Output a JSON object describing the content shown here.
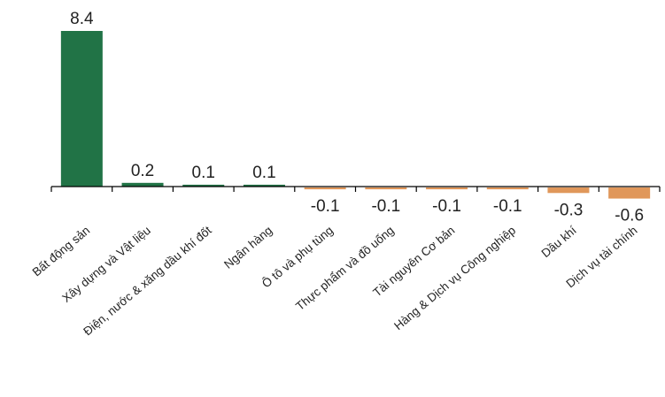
{
  "chart_data": {
    "type": "bar",
    "title": "",
    "xlabel": "",
    "ylabel": "",
    "categories": [
      "Bất động sản",
      "Xây dựng và Vật liệu",
      "Điện, nước & xăng dầu khí đốt",
      "Ngân hàng",
      "Ô tô và phụ tùng",
      "Thực phẩm và đồ uống",
      "Tài nguyên Cơ bản",
      "Hàng & Dịch vụ Công nghiệp",
      "Dầu khí",
      "Dịch vụ tài chính"
    ],
    "values": [
      8.4,
      0.2,
      0.1,
      0.1,
      -0.1,
      -0.1,
      -0.1,
      -0.1,
      -0.3,
      -0.6
    ],
    "labels": [
      "8.4",
      "0.2",
      "0.1",
      "0.1",
      "-0.1",
      "-0.1",
      "-0.1",
      "-0.1",
      "-0.3",
      "-0.6"
    ],
    "colors": {
      "positive": "#217346",
      "negative": "#E0975A",
      "axis": "#000000"
    },
    "grid": false,
    "legend": "none"
  }
}
